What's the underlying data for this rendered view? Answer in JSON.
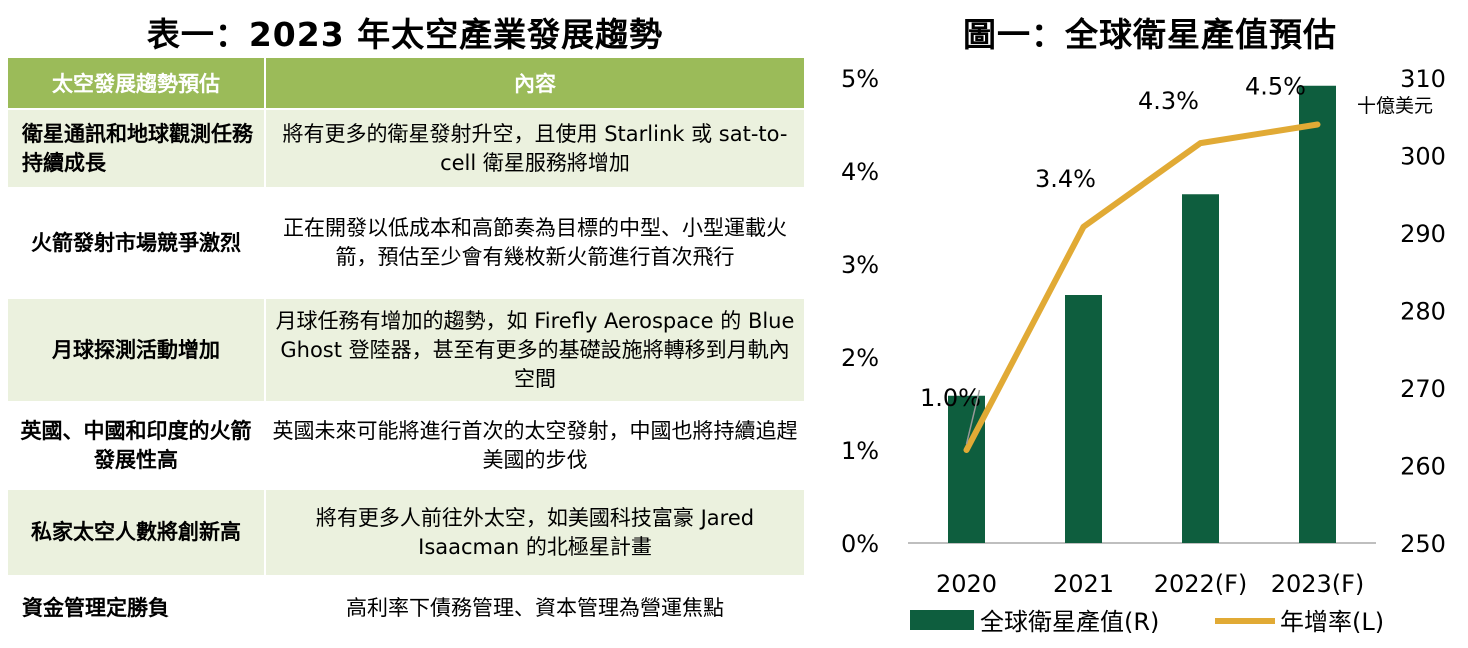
{
  "table": {
    "title": "表一：2023 年太空產業發展趨勢",
    "headers": [
      "太空發展趨勢預估",
      "內容"
    ],
    "rows": [
      {
        "trend": "衛星通訊和地球觀測任務持續成長",
        "content": "將有更多的衛星發射升空，且使用 Starlink 或 sat-to-cell 衛星服務將增加"
      },
      {
        "trend": "火箭發射市場競爭激烈",
        "content": "正在開發以低成本和高節奏為目標的中型、小型運載火箭，預估至少會有幾枚新火箭進行首次飛行"
      },
      {
        "trend": "月球探測活動增加",
        "content": "月球任務有增加的趨勢，如 Firefly Aerospace 的 Blue Ghost 登陸器，甚至有更多的基礎設施將轉移到月軌內空間"
      },
      {
        "trend": "英國、中國和印度的火箭發展性高",
        "content": "英國未來可能將進行首次的太空發射，中國也將持續追趕美國的步伐"
      },
      {
        "trend": "私家太空人數將創新高",
        "content": "將有更多人前往外太空，如美國科技富豪 Jared Isaacman 的北極星計畫"
      },
      {
        "trend": "資金管理定勝負",
        "content": "高利率下債務管理、資本管理為營運焦點"
      }
    ]
  },
  "chart_data": {
    "type": "bar",
    "title": "圖一：全球衛星產值預估",
    "categories": [
      "2020",
      "2021",
      "2022(F)",
      "2023(F)"
    ],
    "series": [
      {
        "name": "全球衛星產值(R)",
        "kind": "bar",
        "axis": "right",
        "values": [
          269,
          282,
          295,
          309
        ],
        "color": "#0e5e3e"
      },
      {
        "name": "年增率(L)",
        "kind": "line",
        "axis": "left",
        "values": [
          1.0,
          3.4,
          4.3,
          4.5
        ],
        "labels": [
          "1.0%",
          "3.4%",
          "4.3%",
          "4.5%"
        ],
        "color": "#e1aa35"
      }
    ],
    "left_axis": {
      "ticks": [
        "0%",
        "1%",
        "2%",
        "3%",
        "4%",
        "5%"
      ],
      "min": 0,
      "max": 5
    },
    "right_axis": {
      "ticks": [
        "250",
        "260",
        "270",
        "280",
        "290",
        "300",
        "310"
      ],
      "min": 250,
      "max": 310,
      "unit": "十億美元"
    },
    "legend_position": "bottom"
  }
}
